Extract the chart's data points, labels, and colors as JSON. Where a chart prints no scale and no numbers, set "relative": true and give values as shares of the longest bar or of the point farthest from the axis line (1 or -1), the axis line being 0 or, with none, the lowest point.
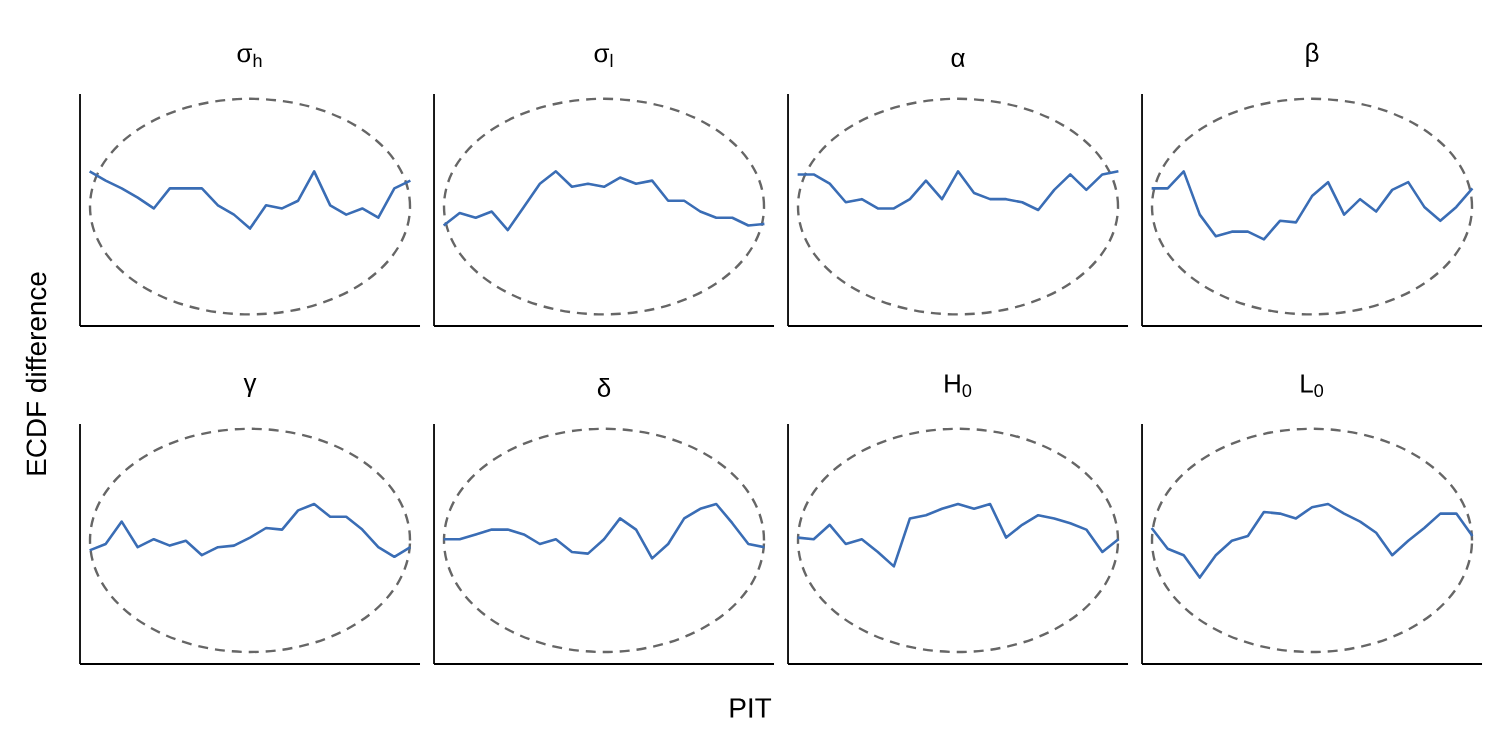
{
  "chart_data": [
    {
      "type": "line",
      "title": "σ$_{h}$",
      "ylabel": "ECDF difference",
      "relative": true,
      "categories": [
        null,
        null,
        null,
        null,
        null,
        null,
        null,
        null,
        null,
        null,
        null,
        null,
        null,
        null,
        null,
        null,
        null,
        null,
        null,
        null,
        null
      ],
      "series": [
        {
          "color": "#3a6db5",
          "line_style": "solid",
          "values": [
            1.0,
            0.94,
            0.89,
            0.83,
            0.76,
            0.89,
            0.89,
            0.89,
            0.78,
            0.72,
            0.63,
            0.78,
            0.76,
            0.81,
            1.0,
            0.78,
            0.72,
            0.76,
            0.7,
            0.89,
            0.94
          ]
        }
      ]
    },
    {
      "type": "line",
      "title": "σ$_{l}$",
      "relative": true,
      "categories": [
        null,
        null,
        null,
        null,
        null,
        null,
        null,
        null,
        null,
        null,
        null,
        null,
        null,
        null,
        null,
        null,
        null,
        null,
        null,
        null,
        null
      ],
      "series": [
        {
          "color": "#3a6db5",
          "line_style": "solid",
          "values": [
            0.65,
            0.73,
            0.7,
            0.74,
            0.62,
            0.77,
            0.92,
            1.0,
            0.9,
            0.92,
            0.9,
            0.96,
            0.92,
            0.94,
            0.81,
            0.81,
            0.74,
            0.7,
            0.7,
            0.65,
            0.66
          ]
        }
      ]
    },
    {
      "type": "line",
      "title": "α",
      "relative": true,
      "categories": [
        null,
        null,
        null,
        null,
        null,
        null,
        null,
        null,
        null,
        null,
        null,
        null,
        null,
        null,
        null,
        null,
        null,
        null,
        null,
        null,
        null
      ],
      "series": [
        {
          "color": "#3a6db5",
          "line_style": "solid",
          "values": [
            0.98,
            0.98,
            0.92,
            0.8,
            0.82,
            0.76,
            0.76,
            0.82,
            0.94,
            0.82,
            1.0,
            0.86,
            0.82,
            0.82,
            0.8,
            0.75,
            0.88,
            0.98,
            0.88,
            0.98,
            1.0
          ]
        }
      ]
    },
    {
      "type": "line",
      "title": "β",
      "relative": true,
      "categories": [
        null,
        null,
        null,
        null,
        null,
        null,
        null,
        null,
        null,
        null,
        null,
        null,
        null,
        null,
        null,
        null,
        null,
        null,
        null,
        null,
        null
      ],
      "series": [
        {
          "color": "#3a6db5",
          "line_style": "solid",
          "values": [
            0.89,
            0.89,
            1.0,
            0.72,
            0.58,
            0.61,
            0.61,
            0.56,
            0.68,
            0.67,
            0.84,
            0.93,
            0.72,
            0.82,
            0.74,
            0.88,
            0.93,
            0.77,
            0.68,
            0.77,
            0.89
          ]
        }
      ]
    },
    {
      "type": "line",
      "title": "γ",
      "relative": true,
      "categories": [
        null,
        null,
        null,
        null,
        null,
        null,
        null,
        null,
        null,
        null,
        null,
        null,
        null,
        null,
        null,
        null,
        null,
        null,
        null,
        null,
        null
      ],
      "series": [
        {
          "color": "#3a6db5",
          "line_style": "solid",
          "values": [
            0.71,
            0.75,
            0.89,
            0.73,
            0.78,
            0.74,
            0.77,
            0.68,
            0.73,
            0.74,
            0.79,
            0.85,
            0.84,
            0.96,
            1.0,
            0.92,
            0.92,
            0.84,
            0.73,
            0.67,
            0.73
          ]
        }
      ]
    },
    {
      "type": "line",
      "title": "δ",
      "xlabel": "PIT",
      "relative": true,
      "categories": [
        null,
        null,
        null,
        null,
        null,
        null,
        null,
        null,
        null,
        null,
        null,
        null,
        null,
        null,
        null,
        null,
        null,
        null,
        null,
        null,
        null
      ],
      "series": [
        {
          "color": "#3a6db5",
          "line_style": "solid",
          "values": [
            0.78,
            0.78,
            0.81,
            0.84,
            0.84,
            0.81,
            0.75,
            0.78,
            0.7,
            0.69,
            0.78,
            0.91,
            0.84,
            0.66,
            0.75,
            0.91,
            0.97,
            1.0,
            0.88,
            0.75,
            0.73
          ]
        }
      ]
    },
    {
      "type": "line",
      "title": "H$_{0}$",
      "relative": true,
      "categories": [
        null,
        null,
        null,
        null,
        null,
        null,
        null,
        null,
        null,
        null,
        null,
        null,
        null,
        null,
        null,
        null,
        null,
        null,
        null,
        null,
        null
      ],
      "series": [
        {
          "color": "#3a6db5",
          "line_style": "solid",
          "values": [
            0.79,
            0.78,
            0.87,
            0.75,
            0.78,
            0.7,
            0.61,
            0.91,
            0.93,
            0.97,
            1.0,
            0.97,
            1.0,
            0.79,
            0.87,
            0.93,
            0.91,
            0.88,
            0.84,
            0.7,
            0.78
          ]
        }
      ]
    },
    {
      "type": "line",
      "title": "L$_{0}$",
      "relative": true,
      "categories": [
        null,
        null,
        null,
        null,
        null,
        null,
        null,
        null,
        null,
        null,
        null,
        null,
        null,
        null,
        null,
        null,
        null,
        null,
        null,
        null,
        null
      ],
      "series": [
        {
          "color": "#3a6db5",
          "line_style": "solid",
          "values": [
            0.85,
            0.72,
            0.68,
            0.54,
            0.68,
            0.77,
            0.8,
            0.95,
            0.94,
            0.91,
            0.98,
            1.0,
            0.94,
            0.89,
            0.82,
            0.68,
            0.77,
            0.85,
            0.94,
            0.94,
            0.8
          ]
        }
      ]
    }
  ]
}
